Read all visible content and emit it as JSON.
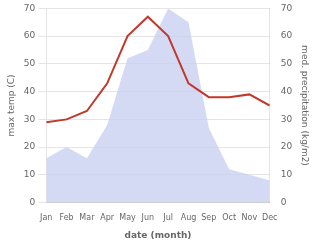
{
  "chart_data": {
    "type": "line",
    "xlabel": "date (month)",
    "ylabel": "max temp (C)",
    "y2label": "med. precipitation (kg/m2)",
    "categories": [
      "Jan",
      "Feb",
      "Mar",
      "Apr",
      "May",
      "Jun",
      "Jul",
      "Aug",
      "Sep",
      "Oct",
      "Nov",
      "Dec"
    ],
    "series": [
      {
        "type": "area",
        "axis": "y2",
        "color": "#c5cdf0",
        "values": [
          16,
          20,
          16,
          28,
          52,
          55,
          70,
          65,
          27,
          12,
          10,
          8
        ]
      },
      {
        "type": "line",
        "color": "#c0392b",
        "values": [
          29,
          30,
          33,
          43,
          60,
          67,
          60,
          43,
          38,
          38,
          39,
          35
        ]
      }
    ],
    "ylim": [
      0,
      70
    ],
    "yticks": [
      0,
      10,
      20,
      30,
      40,
      50,
      60,
      70
    ],
    "y2lim": [
      0,
      70
    ],
    "y2ticks": [
      0,
      10,
      20,
      30,
      40,
      50,
      60,
      70
    ],
    "grid": "y"
  }
}
